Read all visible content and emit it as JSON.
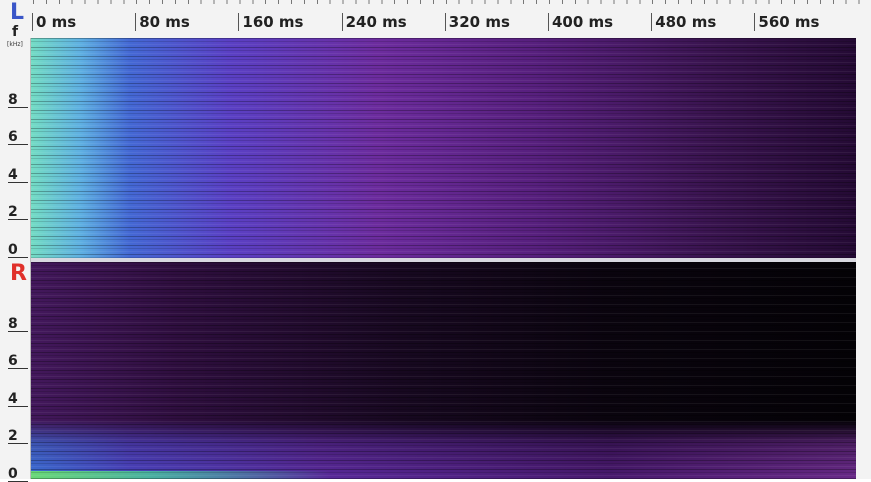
{
  "axis": {
    "freq_label": "f",
    "freq_unit": "[kHz]",
    "time_ticks": [
      "0 ms",
      "80 ms",
      "160 ms",
      "240 ms",
      "320 ms",
      "400 ms",
      "480 ms",
      "560 ms"
    ]
  },
  "channels": [
    {
      "label": "L",
      "freq_ticks": [
        "8",
        "6",
        "4",
        "2",
        "0"
      ]
    },
    {
      "label": "R",
      "freq_ticks": [
        "8",
        "6",
        "4",
        "2",
        "0"
      ]
    }
  ]
}
